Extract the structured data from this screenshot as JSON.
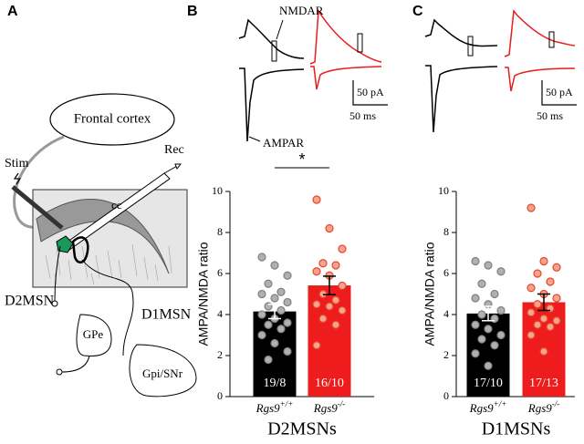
{
  "panel_labels": [
    "A",
    "B",
    "C"
  ],
  "diagram": {
    "frontal_cortex": "Frontal cortex",
    "stim": "Stim",
    "rec": "Rec",
    "cc": "cc",
    "d2msn": "D2MSN",
    "d1msn": "D1MSN",
    "gpe": "GPe",
    "gpi": "Gpi/SNr"
  },
  "traces": {
    "nmdar": "NMDAR",
    "ampar": "AMPAR",
    "scale_bars": [
      {
        "current": "50 pA",
        "time": "50 ms"
      },
      {
        "current": "50 pA",
        "time": "50 ms"
      }
    ]
  },
  "chart_data": [
    {
      "type": "bar",
      "ylabel": "AMPA/NMDA ratio",
      "xlabel": "D2MSNs",
      "categories": [
        "Rgs9",
        "Rgs9"
      ],
      "category_superscripts": [
        "+/+",
        "-/-"
      ],
      "values": [
        4.15,
        5.42
      ],
      "errors": [
        0.35,
        0.45
      ],
      "n_labels": [
        "19/8",
        "16/10"
      ],
      "colors": [
        "#000000",
        "#ee1c1c"
      ],
      "point_colors": [
        "#b0b0b0",
        "#f7a48e"
      ],
      "point_strokes": [
        "#808080",
        "#e5462b"
      ],
      "points": [
        [
          6.8,
          6.4,
          5.9,
          5.5,
          5.1,
          5.0,
          4.8,
          4.6,
          4.4,
          4.2,
          4.0,
          3.8,
          3.6,
          3.5,
          3.3,
          3.0,
          2.6,
          2.2,
          1.8
        ],
        [
          9.6,
          8.2,
          7.2,
          6.5,
          6.4,
          6.1,
          5.9,
          5.4,
          5.0,
          4.7,
          4.5,
          4.4,
          4.2,
          3.8,
          3.5,
          2.5
        ]
      ],
      "significance": "*",
      "ylim": [
        0,
        10
      ],
      "yticks": [
        0,
        2,
        4,
        6,
        8,
        10
      ]
    },
    {
      "type": "bar",
      "ylabel": "AMPA/NMDA ratio",
      "xlabel": "D1MSNs",
      "categories": [
        "Rgs9",
        "Rgs9"
      ],
      "category_superscripts": [
        "+/+",
        "-/-"
      ],
      "values": [
        4.05,
        4.6
      ],
      "errors": [
        0.35,
        0.4
      ],
      "n_labels": [
        "17/10",
        "17/13"
      ],
      "colors": [
        "#000000",
        "#ee1c1c"
      ],
      "point_colors": [
        "#b0b0b0",
        "#f7a48e"
      ],
      "point_strokes": [
        "#808080",
        "#e5462b"
      ],
      "points": [
        [
          6.6,
          6.4,
          6.1,
          5.5,
          5.0,
          4.8,
          4.5,
          4.2,
          4.0,
          3.8,
          3.5,
          3.3,
          3.0,
          2.8,
          2.5,
          2.1,
          1.5
        ],
        [
          9.2,
          6.6,
          6.3,
          6.0,
          5.6,
          5.3,
          5.0,
          4.8,
          4.5,
          4.3,
          4.1,
          3.8,
          3.7,
          3.5,
          3.4,
          3.0,
          2.2
        ]
      ],
      "ylim": [
        0,
        10
      ],
      "yticks": [
        0,
        2,
        4,
        6,
        8,
        10
      ]
    }
  ]
}
